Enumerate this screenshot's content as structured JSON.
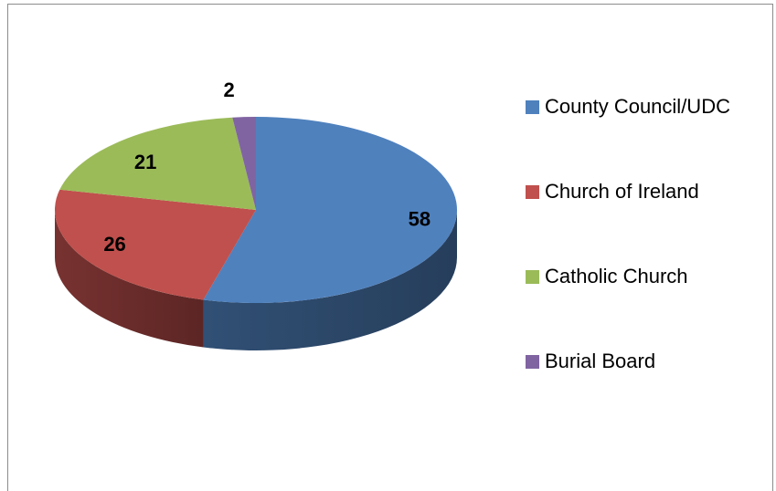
{
  "chart_data": {
    "type": "pie",
    "title": "",
    "three_d": true,
    "categories": [
      "County Council/UDC",
      "Church of Ireland",
      "Catholic Church",
      "Burial Board"
    ],
    "values": [
      58,
      26,
      21,
      2
    ],
    "colors": {
      "County Council/UDC": "#4f81bd",
      "Church of Ireland": "#c0504d",
      "Catholic Church": "#9bbb59",
      "Burial Board": "#8064a2"
    },
    "data_labels": [
      "58",
      "26",
      "21",
      "2"
    ],
    "legend_position": "right"
  }
}
